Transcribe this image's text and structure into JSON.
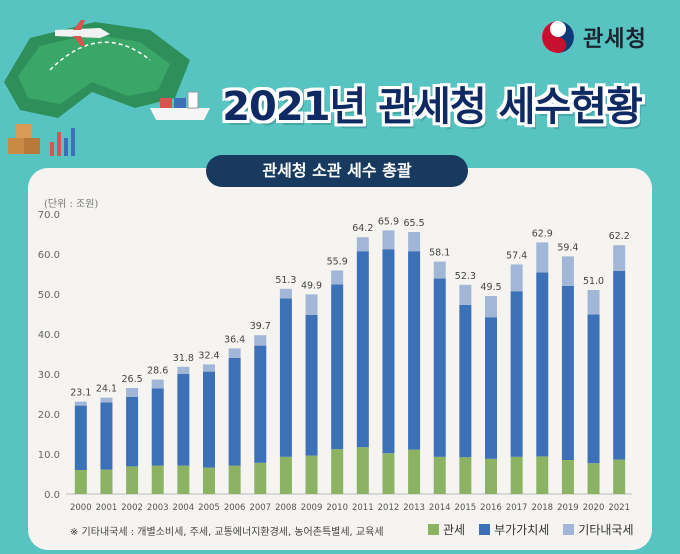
{
  "logo": {
    "text": "관세청"
  },
  "header": {
    "title": "2021년 관세청 세수현황",
    "subtitle": "관세청 소관 세수 총괄"
  },
  "colors": {
    "customs": "#8cb363",
    "vat": "#3d71b7",
    "other": "#a2b7d8"
  },
  "chart_data": {
    "type": "bar",
    "stacked": true,
    "unit_label": "(단위 : 조원)",
    "categories": [
      "2000",
      "2001",
      "2002",
      "2003",
      "2004",
      "2005",
      "2006",
      "2007",
      "2008",
      "2009",
      "2010",
      "2011",
      "2012",
      "2013",
      "2014",
      "2015",
      "2016",
      "2017",
      "2018",
      "2019",
      "2020",
      "2021"
    ],
    "series": [
      {
        "name": "관세",
        "values": [
          6.0,
          6.1,
          6.9,
          7.1,
          7.1,
          6.6,
          7.1,
          7.8,
          9.3,
          9.6,
          11.2,
          11.7,
          10.2,
          11.1,
          9.3,
          9.2,
          8.8,
          9.3,
          9.4,
          8.5,
          7.7,
          8.6
        ]
      },
      {
        "name": "부가가치세",
        "values": [
          16.1,
          16.8,
          17.4,
          19.3,
          22.9,
          24.0,
          26.9,
          29.3,
          39.6,
          35.2,
          41.2,
          49.0,
          51.0,
          49.6,
          44.6,
          38.1,
          35.4,
          41.4,
          46.0,
          43.5,
          37.2,
          47.2
        ]
      },
      {
        "name": "기타내국세",
        "values": [
          1.0,
          1.2,
          2.2,
          2.2,
          1.8,
          1.8,
          2.4,
          2.6,
          2.4,
          5.1,
          3.5,
          3.5,
          4.7,
          4.8,
          4.2,
          5.0,
          5.3,
          6.7,
          7.5,
          7.4,
          6.1,
          6.4
        ]
      }
    ],
    "totals": [
      23.1,
      24.1,
      26.5,
      28.6,
      31.8,
      32.4,
      36.4,
      39.7,
      51.3,
      49.9,
      55.9,
      64.2,
      65.9,
      65.5,
      58.1,
      52.3,
      49.5,
      57.4,
      62.9,
      59.4,
      51.0,
      62.2
    ],
    "total_labels": [
      "23.1",
      "24.1",
      "26.5",
      "28.6",
      "31.8",
      "32.4",
      "36.4",
      "39.7",
      "51.3",
      "49.9",
      "55.9",
      "64.2",
      "65.9",
      "65.5",
      "58.1",
      "52.3",
      "49.5",
      "57.4",
      "62.9",
      "59.4",
      "51.0",
      "62.2"
    ],
    "yticks": [
      "0.0",
      "10.0",
      "20.0",
      "30.0",
      "40.0",
      "50.0",
      "60.0",
      "70.0"
    ],
    "ylim": [
      0,
      70
    ],
    "grid": false,
    "legend_position": "bottom-right",
    "note": "※ 기타내국세 : 개별소비세, 주세, 교통에너지환경세, 농어촌특별세, 교육세"
  }
}
